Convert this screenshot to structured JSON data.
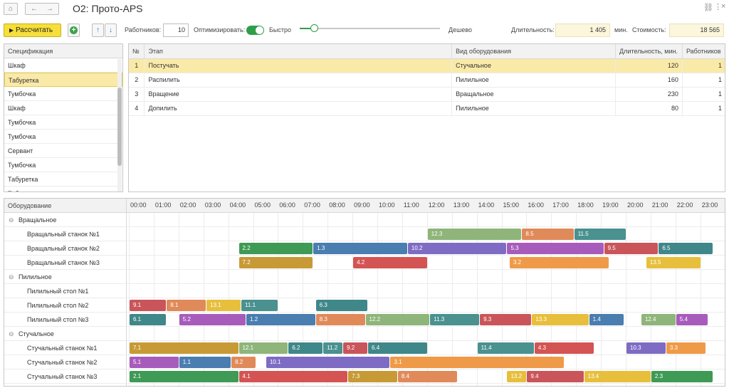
{
  "window": {
    "home_icon": "home-icon",
    "back_icon": "arrow-left-icon",
    "forward_icon": "arrow-right-icon",
    "title": "О2: Прото-APS",
    "link_icon": "link-icon",
    "more_icon": "more-vertical-icon",
    "close_icon": "close-icon"
  },
  "toolbar": {
    "calc_label": "Рассчитать",
    "calc_icon": "play-icon",
    "add_icon": "plus-circle-icon",
    "up_icon": "arrow-up-icon",
    "down_icon": "arrow-down-icon",
    "workers_label": "Работников:",
    "workers_value": "10",
    "optimize_label": "Оптимизировать:",
    "optimize_on": true,
    "fast_label": "Быстро",
    "cheap_label": "Дешево",
    "slider_fraction": 0.1,
    "duration_label": "Длительность:",
    "duration_value": "1 405",
    "minutes_label": "мин.",
    "cost_label": "Стоимость:",
    "cost_value": "18 565"
  },
  "spec": {
    "header": "Спецификация",
    "items": [
      "Шкаф",
      "Табуретка",
      "Тумбочка",
      "Шкаф",
      "Тумбочка",
      "Тумбочка",
      "Сервант",
      "Тумбочка",
      "Табуретка",
      "Табур"
    ],
    "selected": 1
  },
  "steps": {
    "columns": [
      "№",
      "Этап",
      "Вид оборудования",
      "Длительность, мин.",
      "Работников"
    ],
    "rows": [
      [
        "1",
        "Постучать",
        "Стучальное",
        "120",
        "1"
      ],
      [
        "2",
        "Распилить",
        "Пилильное",
        "160",
        "1"
      ],
      [
        "3",
        "Вращение",
        "Вращальное",
        "230",
        "1"
      ],
      [
        "4",
        "Допилить",
        "Пилильное",
        "80",
        "1"
      ]
    ],
    "selected": 0
  },
  "gantt": {
    "header": "Оборудование",
    "hours": [
      "00:00",
      "01:00",
      "02:00",
      "03:00",
      "04:00",
      "05:00",
      "06:00",
      "07:00",
      "08:00",
      "09:00",
      "10:00",
      "11:00",
      "12:00",
      "13:00",
      "14:00",
      "15:00",
      "16:00",
      "17:00",
      "18:00",
      "19:00",
      "20:00",
      "21:00",
      "22:00",
      "23:00"
    ],
    "rows": [
      {
        "label": "Вращальное",
        "group": true,
        "bars": []
      },
      {
        "label": "Вращальный станок №1",
        "bars": [
          [
            "12.3",
            12.0,
            15.8,
            "#8fb57a"
          ],
          [
            "8.5",
            15.8,
            17.9,
            "#e08a5a"
          ],
          [
            "11.5",
            17.9,
            20.0,
            "#4a9190"
          ]
        ]
      },
      {
        "label": "Вращальный станок №2",
        "bars": [
          [
            "2.2",
            4.4,
            7.4,
            "#3e9a55"
          ],
          [
            "1.3",
            7.4,
            11.2,
            "#4a7db0"
          ],
          [
            "10.2",
            11.2,
            15.2,
            "#7e6cc4"
          ],
          [
            "5.3",
            15.2,
            19.1,
            "#a75cbc"
          ],
          [
            "9.5",
            19.1,
            21.3,
            "#c9555a"
          ],
          [
            "6.5",
            21.3,
            23.5,
            "#3f8789"
          ]
        ]
      },
      {
        "label": "Вращальный станок №3",
        "bars": [
          [
            "7.2",
            4.4,
            7.4,
            "#c79a35"
          ],
          [
            "4.2",
            9.0,
            12.0,
            "#d45454"
          ],
          [
            "3.2",
            15.3,
            19.3,
            "#ef9a48"
          ],
          [
            "13.5",
            20.8,
            23.0,
            "#e7bf3c"
          ]
        ]
      },
      {
        "label": "Пилильное",
        "group": true,
        "bars": []
      },
      {
        "label": "Пилильный стол №1",
        "bars": []
      },
      {
        "label": "Пилильный стол №2",
        "bars": [
          [
            "9.1",
            0.0,
            1.5,
            "#c9555a"
          ],
          [
            "8.1",
            1.5,
            3.1,
            "#e08a5a"
          ],
          [
            "13.1",
            3.1,
            4.5,
            "#e7bf3c"
          ],
          [
            "11.1",
            4.5,
            6.0,
            "#4a9190"
          ],
          [
            "6.3",
            7.5,
            9.6,
            "#3f8789"
          ]
        ]
      },
      {
        "label": "Пилильный стол №3",
        "bars": [
          [
            "6.1",
            0.0,
            1.5,
            "#3f8789"
          ],
          [
            "5.2",
            2.0,
            4.7,
            "#a75cbc"
          ],
          [
            "1.2",
            4.7,
            7.5,
            "#4a7db0"
          ],
          [
            "8.3",
            7.5,
            9.5,
            "#e08a5a"
          ],
          [
            "12.2",
            9.5,
            12.1,
            "#8fb57a"
          ],
          [
            "11.3",
            12.1,
            14.1,
            "#4a9190"
          ],
          [
            "9.3",
            14.1,
            16.2,
            "#c9555a"
          ],
          [
            "13.3",
            16.2,
            18.5,
            "#e7bf3c"
          ],
          [
            "1.4",
            18.5,
            19.9,
            "#4a7db0"
          ],
          [
            "12.4",
            20.6,
            22.0,
            "#8fb57a"
          ],
          [
            "5.4",
            22.0,
            23.3,
            "#a75cbc"
          ]
        ]
      },
      {
        "label": "Стучальное",
        "group": true,
        "bars": []
      },
      {
        "label": "Стучальный станок №1",
        "bars": [
          [
            "7.1",
            0.0,
            4.4,
            "#c79a35"
          ],
          [
            "12.1",
            4.4,
            6.4,
            "#8fb57a"
          ],
          [
            "6.2",
            6.4,
            7.8,
            "#3f8789"
          ],
          [
            "11.2",
            7.8,
            8.6,
            "#4a9190"
          ],
          [
            "9.2",
            8.6,
            9.6,
            "#c9555a"
          ],
          [
            "6.4",
            9.6,
            12.0,
            "#3f8789"
          ],
          [
            "11.4",
            14.0,
            16.3,
            "#4a9190"
          ],
          [
            "4.3",
            16.3,
            18.7,
            "#d45454"
          ],
          [
            "10.3",
            20.0,
            21.6,
            "#7e6cc4"
          ],
          [
            "3.3",
            21.6,
            23.2,
            "#ef9a48"
          ]
        ]
      },
      {
        "label": "Стучальный станок №2",
        "bars": [
          [
            "5.1",
            0.0,
            2.0,
            "#a75cbc"
          ],
          [
            "1.1",
            2.0,
            4.1,
            "#4a7db0"
          ],
          [
            "8.2",
            4.1,
            5.1,
            "#e08a5a"
          ],
          [
            "10.1",
            5.5,
            10.5,
            "#7e6cc4"
          ],
          [
            "3.1",
            10.5,
            17.5,
            "#ef9a48"
          ]
        ]
      },
      {
        "label": "Стучальный станок №3",
        "bars": [
          [
            "2.1",
            0.0,
            4.4,
            "#3e9a55"
          ],
          [
            "4.1",
            4.4,
            8.8,
            "#d45454"
          ],
          [
            "7.3",
            8.8,
            10.8,
            "#c79a35"
          ],
          [
            "8.4",
            10.8,
            13.2,
            "#e08a5a"
          ],
          [
            "13.2",
            15.2,
            16.0,
            "#e7bf3c"
          ],
          [
            "9.4",
            16.0,
            18.3,
            "#c9555a"
          ],
          [
            "13.4",
            18.3,
            21.0,
            "#e7bf3c"
          ],
          [
            "2.3",
            21.0,
            23.5,
            "#3e9a55"
          ]
        ]
      }
    ]
  }
}
